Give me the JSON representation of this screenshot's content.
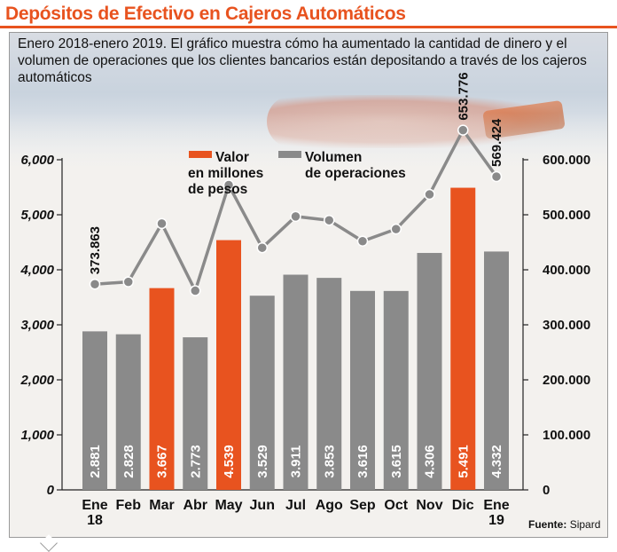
{
  "header": {
    "title": "Depósitos de Efectivo en Cajeros Automáticos",
    "subtitle": "Enero 2018-enero 2019. El gráfico muestra cómo ha aumentado la cantidad de dinero y el volumen de operaciones que los clientes bancarios están depositando a través de los cajeros automáticos"
  },
  "colors": {
    "accent": "#e8531f",
    "bar_gray": "#8a8a8a",
    "bar_highlight": "#e8531f",
    "line": "#8a8a8a"
  },
  "chart_data": {
    "type": "bar",
    "categories": [
      [
        "Ene",
        "18"
      ],
      [
        "Feb"
      ],
      [
        "Mar"
      ],
      [
        "Abr"
      ],
      [
        "May"
      ],
      [
        "Jun"
      ],
      [
        "Jul"
      ],
      [
        "Ago"
      ],
      [
        "Sep"
      ],
      [
        "Oct"
      ],
      [
        "Nov"
      ],
      [
        "Dic"
      ],
      [
        "Ene",
        "19"
      ]
    ],
    "highlight_indices": [
      2,
      4,
      11
    ],
    "series": [
      {
        "name": "Valor en millones de pesos",
        "axis": "left",
        "type": "bar",
        "values": [
          2881,
          2828,
          3667,
          2773,
          4539,
          3529,
          3911,
          3853,
          3616,
          3615,
          4306,
          5491,
          4332
        ],
        "labels": [
          "2.881",
          "2.828",
          "3.667",
          "2.773",
          "4.539",
          "3.529",
          "3.911",
          "3.853",
          "3.616",
          "3.615",
          "4.306",
          "5.491",
          "4.332"
        ]
      },
      {
        "name": "Volumen de operaciones",
        "axis": "right",
        "type": "line",
        "values": [
          373863,
          378000,
          484000,
          362000,
          554000,
          440000,
          497000,
          490000,
          452000,
          474000,
          537000,
          653776,
          569424
        ],
        "point_labels": {
          "0": "373.863",
          "11": "653.776",
          "12": "569.424"
        }
      }
    ],
    "left_axis": {
      "ylim": [
        0,
        6000
      ],
      "ticks": [
        "0",
        "1,000",
        "2,000",
        "3,000",
        "4,000",
        "5,000",
        "6,000"
      ]
    },
    "right_axis": {
      "ylim": [
        0,
        600000
      ],
      "ticks": [
        "0",
        "100.000",
        "200.000",
        "300.000",
        "400.000",
        "500.000",
        "600.000"
      ]
    },
    "legend": {
      "placement": "top-center",
      "entries": [
        {
          "lines": [
            "Valor",
            "en millones",
            "de pesos"
          ],
          "color": "#e8531f"
        },
        {
          "lines": [
            "Volumen",
            "de operaciones"
          ],
          "color": "#8a8a8a"
        }
      ]
    },
    "grid": false
  },
  "footer": {
    "source_label": "Fuente:",
    "source_value": "Sipard"
  }
}
